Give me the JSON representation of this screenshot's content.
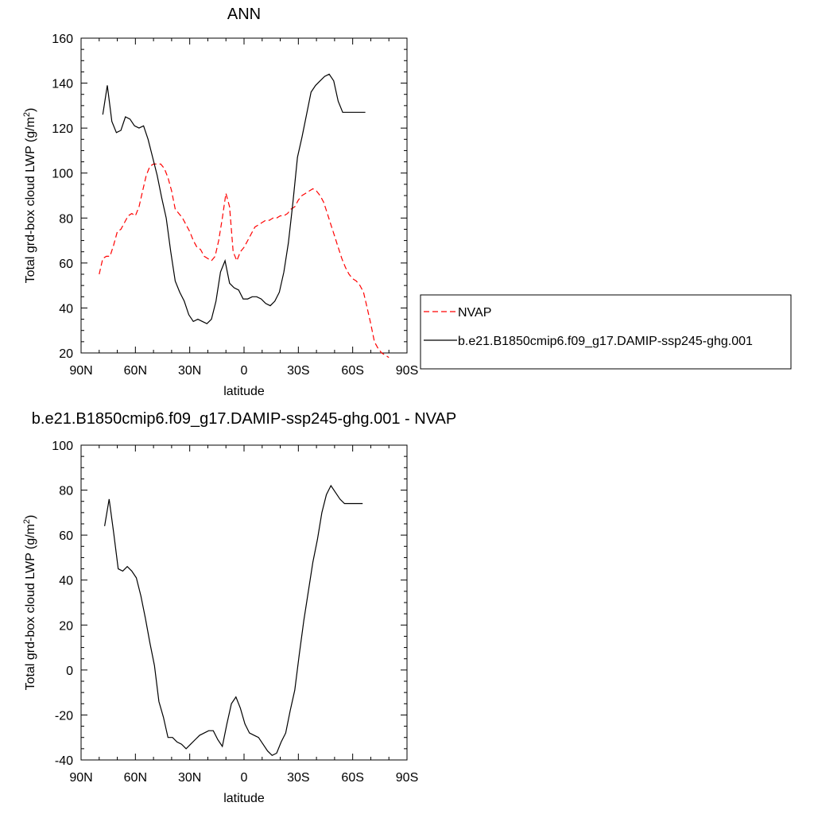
{
  "chart_data": [
    {
      "type": "line",
      "title": "ANN",
      "xlabel": "latitude",
      "ylabel": "Total grd-box cloud LWP (g/m",
      "ylabel_sup": "2",
      "ylabel_close": ")",
      "xlim": [
        90,
        -90
      ],
      "ylim": [
        20,
        160
      ],
      "x_ticks": [
        90,
        60,
        30,
        0,
        -30,
        -60,
        -90
      ],
      "x_tick_labels": [
        "90N",
        "60N",
        "30N",
        "0",
        "30S",
        "60S",
        "90S"
      ],
      "y_ticks": [
        20,
        40,
        60,
        80,
        100,
        120,
        140,
        160
      ],
      "y_tick_labels": [
        "20",
        "40",
        "60",
        "80",
        "100",
        "120",
        "140",
        "160"
      ],
      "legend_position": "right",
      "series": [
        {
          "name": "NVAP",
          "color": "#ff0000",
          "dash": "dashed",
          "x": [
            80,
            78,
            76,
            74,
            72,
            70,
            68,
            66,
            64,
            62,
            60,
            58,
            56,
            54,
            52,
            50,
            48,
            46,
            44,
            42,
            40,
            38,
            36,
            34,
            32,
            30,
            28,
            26,
            24,
            22,
            20,
            18,
            16,
            14,
            12,
            10,
            8,
            6,
            4,
            2,
            0,
            -2,
            -4,
            -6,
            -8,
            -10,
            -12,
            -14,
            -16,
            -18,
            -20,
            -22,
            -24,
            -26,
            -28,
            -30,
            -32,
            -34,
            -36,
            -38,
            -40,
            -42,
            -44,
            -46,
            -48,
            -50,
            -52,
            -54,
            -56,
            -58,
            -60,
            -62,
            -64,
            -66,
            -68,
            -70,
            -72,
            -74,
            -76,
            -78,
            -80
          ],
          "y": [
            55,
            62,
            63,
            63,
            68,
            74,
            75,
            78,
            81,
            82,
            81,
            85,
            92,
            99,
            103,
            104,
            104,
            104,
            102,
            98,
            92,
            84,
            82,
            80,
            77,
            74,
            70,
            67,
            66,
            63,
            62,
            61,
            63,
            70,
            80,
            91,
            85,
            65,
            61,
            65,
            67,
            70,
            73,
            76,
            77,
            78,
            79,
            79,
            80,
            80,
            81,
            81,
            82,
            84,
            85,
            88,
            90,
            91,
            92,
            93,
            92,
            90,
            87,
            82,
            77,
            72,
            67,
            62,
            58,
            55,
            53,
            52,
            50,
            47,
            40,
            33,
            25,
            22,
            20,
            19,
            18
          ]
        },
        {
          "name": "b.e21.B1850cmip6.f09_g17.DAMIP-ssp245-ghg.001",
          "color": "#000000",
          "dash": "solid",
          "x": [
            78,
            75.5,
            73,
            70.5,
            68,
            65.5,
            63,
            60.5,
            58,
            55.5,
            53,
            50.5,
            48,
            45.5,
            43,
            40.5,
            38,
            35.5,
            33,
            30.5,
            28,
            25.5,
            23,
            20.5,
            18,
            15.5,
            13,
            10.5,
            8,
            5.5,
            3,
            0.5,
            -2,
            -4.5,
            -7,
            -9.5,
            -12,
            -14.5,
            -17,
            -19.5,
            -22,
            -24.5,
            -27,
            -29.5,
            -32,
            -34.5,
            -37,
            -39.5,
            -42,
            -44.5,
            -47,
            -49.5,
            -52,
            -54.5,
            -57,
            -59.5,
            -62,
            -64.5,
            -67
          ],
          "y": [
            126,
            139,
            123,
            118,
            119,
            125,
            124,
            121,
            120,
            121,
            115,
            107,
            99,
            89,
            80,
            65,
            52,
            47,
            43,
            37,
            34,
            35,
            34,
            33,
            35,
            43,
            56,
            61,
            51,
            49,
            48,
            44,
            44,
            45,
            45,
            44,
            42,
            41,
            43,
            47,
            56,
            69,
            87,
            107,
            116,
            126,
            136,
            139,
            141,
            143,
            144,
            141,
            132,
            127,
            127,
            127,
            127,
            127,
            127
          ]
        }
      ]
    },
    {
      "type": "line",
      "title": "b.e21.B1850cmip6.f09_g17.DAMIP-ssp245-ghg.001 - NVAP",
      "xlabel": "latitude",
      "ylabel": "Total grd-box cloud LWP (g/m",
      "ylabel_sup": "2",
      "ylabel_close": ")",
      "xlim": [
        90,
        -90
      ],
      "ylim": [
        -40,
        100
      ],
      "x_ticks": [
        90,
        60,
        30,
        0,
        -30,
        -60,
        -90
      ],
      "x_tick_labels": [
        "90N",
        "60N",
        "30N",
        "0",
        "30S",
        "60S",
        "90S"
      ],
      "y_ticks": [
        -40,
        -20,
        0,
        20,
        40,
        60,
        80,
        100
      ],
      "y_tick_labels": [
        "-40",
        "-20",
        "0",
        "20",
        "40",
        "60",
        "80",
        "100"
      ],
      "series": [
        {
          "color": "#000000",
          "dash": "solid",
          "x": [
            77,
            74.5,
            72,
            69.5,
            67,
            64.5,
            62,
            59.5,
            57,
            54.5,
            52,
            49.5,
            47,
            44.5,
            42,
            39.5,
            37,
            34.5,
            32,
            29.5,
            27,
            24.5,
            22,
            19.5,
            17,
            14.5,
            12,
            9.5,
            7,
            4.5,
            2,
            -0.5,
            -3,
            -5.5,
            -8,
            -10.5,
            -13,
            -15.5,
            -18,
            -20.5,
            -23,
            -25.5,
            -28,
            -30.5,
            -33,
            -35.5,
            -38,
            -40.5,
            -43,
            -45.5,
            -48,
            -50.5,
            -53,
            -55.5,
            -58,
            -60.5,
            -63,
            -65.5
          ],
          "y": [
            64,
            76,
            61,
            45,
            44,
            46,
            44,
            41,
            33,
            23,
            12,
            2,
            -14,
            -21,
            -30,
            -30,
            -32,
            -33,
            -35,
            -33,
            -31,
            -29,
            -28,
            -27,
            -27,
            -31,
            -34,
            -24,
            -15,
            -12,
            -17,
            -24,
            -28,
            -29,
            -30,
            -33,
            -36,
            -38,
            -37,
            -32,
            -28,
            -18,
            -9,
            7,
            22,
            35,
            48,
            58,
            70,
            78,
            82,
            79,
            76,
            74,
            74,
            74,
            74,
            74
          ]
        }
      ]
    }
  ]
}
